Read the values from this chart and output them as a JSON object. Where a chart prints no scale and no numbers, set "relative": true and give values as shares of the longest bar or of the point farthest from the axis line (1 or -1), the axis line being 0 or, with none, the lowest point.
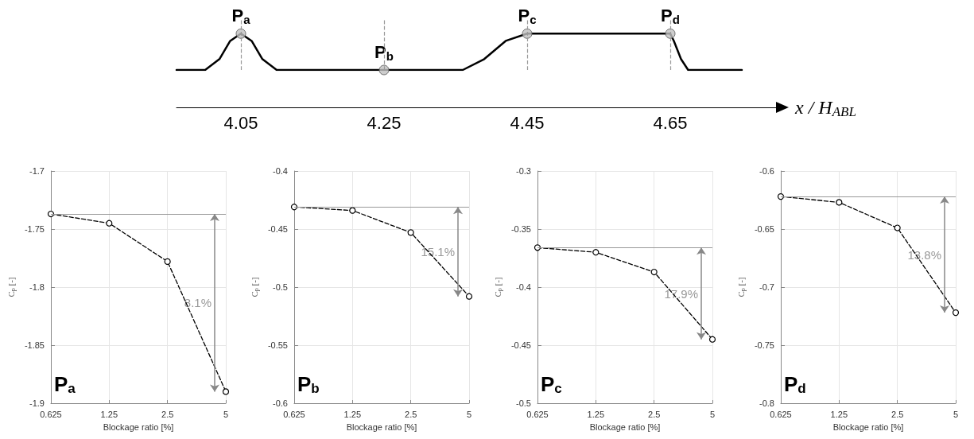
{
  "chart_data": [
    {
      "type": "line",
      "relative": true,
      "xlabel": "x / H$_{ABL}$",
      "xlim": [
        3.96,
        4.8
      ],
      "xticks": [
        4.05,
        4.25,
        4.45,
        4.65
      ],
      "tick_labels": "x",
      "grid": false,
      "marker": "none",
      "x": [
        3.96,
        4.0,
        4.02,
        4.035,
        4.05,
        4.065,
        4.08,
        4.1,
        4.25,
        4.36,
        4.39,
        4.42,
        4.45,
        4.65,
        4.655,
        4.665,
        4.675,
        4.75
      ],
      "series": [
        {
          "color": "#000000",
          "values": [
            0,
            0,
            0.3,
            0.8,
            1,
            0.8,
            0.3,
            0,
            0,
            0,
            0.3,
            0.8,
            1,
            1,
            0.8,
            0.3,
            0,
            0
          ]
        },
        {
          "type": "scatter",
          "marker": "circle",
          "color": "#c0c0c0",
          "x": [
            4.05,
            4.25,
            4.45,
            4.65
          ],
          "values": [
            1,
            0,
            1,
            1
          ]
        }
      ],
      "ref_lines": [
        {
          "axis": "x",
          "value": 4.05,
          "label": null,
          "color": "#999999",
          "line_style": "dashed"
        },
        {
          "axis": "x",
          "value": 4.25,
          "label": null,
          "color": "#999999",
          "line_style": "dashed"
        },
        {
          "axis": "x",
          "value": 4.45,
          "label": null,
          "color": "#999999",
          "line_style": "dashed"
        },
        {
          "axis": "x",
          "value": 4.65,
          "label": null,
          "color": "#999999",
          "line_style": "dashed"
        }
      ],
      "annotations": [
        {
          "text": "P$_{a}$",
          "x": 4.05,
          "y": 1
        },
        {
          "text": "P$_{b}$",
          "x": 4.25,
          "y": 0
        },
        {
          "text": "P$_{c}$",
          "x": 4.45,
          "y": 1
        },
        {
          "text": "P$_{d}$",
          "x": 4.65,
          "y": 1
        }
      ]
    },
    {
      "type": "line",
      "xlabel": "Blockage ratio [%]",
      "ylabel": "C$_{p}$ [-]",
      "log": "x",
      "x": [
        0.625,
        1.25,
        2.5,
        5
      ],
      "xlim": [
        0.625,
        5
      ],
      "xticks": [
        0.625,
        1.25,
        2.5,
        5
      ],
      "ylim": [
        -1.9,
        -1.7
      ],
      "yticks": [
        -1.9,
        -1.85,
        -1.8,
        -1.75,
        -1.7
      ],
      "grid": true,
      "marker": "circle",
      "line_style": "dashed",
      "series": [
        {
          "color": "#000000",
          "values": [
            -1.737,
            -1.745,
            -1.778,
            -1.89
          ]
        }
      ],
      "ref_lines": [
        {
          "axis": "y",
          "value": -1.737,
          "label": null,
          "color": "#999999"
        }
      ],
      "annotations": [
        "P$_{a}$",
        "8.1%"
      ]
    },
    {
      "type": "line",
      "xlabel": "Blockage ratio [%]",
      "ylabel": "C$_{p}$ [-]",
      "log": "x",
      "x": [
        0.625,
        1.25,
        2.5,
        5
      ],
      "xlim": [
        0.625,
        5
      ],
      "xticks": [
        0.625,
        1.25,
        2.5,
        5
      ],
      "ylim": [
        -0.6,
        -0.4
      ],
      "yticks": [
        -0.6,
        -0.55,
        -0.5,
        -0.45,
        -0.4
      ],
      "grid": true,
      "marker": "circle",
      "line_style": "dashed",
      "series": [
        {
          "color": "#000000",
          "values": [
            -0.431,
            -0.434,
            -0.453,
            -0.508
          ]
        }
      ],
      "ref_lines": [
        {
          "axis": "y",
          "value": -0.431,
          "label": null,
          "color": "#999999"
        }
      ],
      "annotations": [
        "P$_{b}$",
        "15.1%"
      ]
    },
    {
      "type": "line",
      "xlabel": "Blockage ratio [%]",
      "ylabel": "C$_{p}$ [-]",
      "log": "x",
      "x": [
        0.625,
        1.25,
        2.5,
        5
      ],
      "xlim": [
        0.625,
        5
      ],
      "xticks": [
        0.625,
        1.25,
        2.5,
        5
      ],
      "ylim": [
        -0.5,
        -0.3
      ],
      "yticks": [
        -0.5,
        -0.45,
        -0.4,
        -0.35,
        -0.3
      ],
      "grid": true,
      "marker": "circle",
      "line_style": "dashed",
      "series": [
        {
          "color": "#000000",
          "values": [
            -0.366,
            -0.37,
            -0.387,
            -0.445
          ]
        }
      ],
      "ref_lines": [
        {
          "axis": "y",
          "value": -0.366,
          "label": null,
          "color": "#999999"
        }
      ],
      "annotations": [
        "P$_{c}$",
        "17.9%"
      ]
    },
    {
      "type": "line",
      "xlabel": "Blockage ratio [%]",
      "ylabel": "C$_{p}$ [-]",
      "log": "x",
      "x": [
        0.625,
        1.25,
        2.5,
        5
      ],
      "xlim": [
        0.625,
        5
      ],
      "xticks": [
        0.625,
        1.25,
        2.5,
        5
      ],
      "ylim": [
        -0.8,
        -0.6
      ],
      "yticks": [
        -0.8,
        -0.75,
        -0.7,
        -0.65,
        -0.6
      ],
      "grid": true,
      "marker": "circle",
      "line_style": "dashed",
      "series": [
        {
          "color": "#000000",
          "values": [
            -0.622,
            -0.627,
            -0.649,
            -0.722
          ]
        }
      ],
      "ref_lines": [
        {
          "axis": "y",
          "value": -0.622,
          "label": null,
          "color": "#999999"
        }
      ],
      "annotations": [
        "P$_{d}$",
        "13.8%"
      ]
    }
  ]
}
